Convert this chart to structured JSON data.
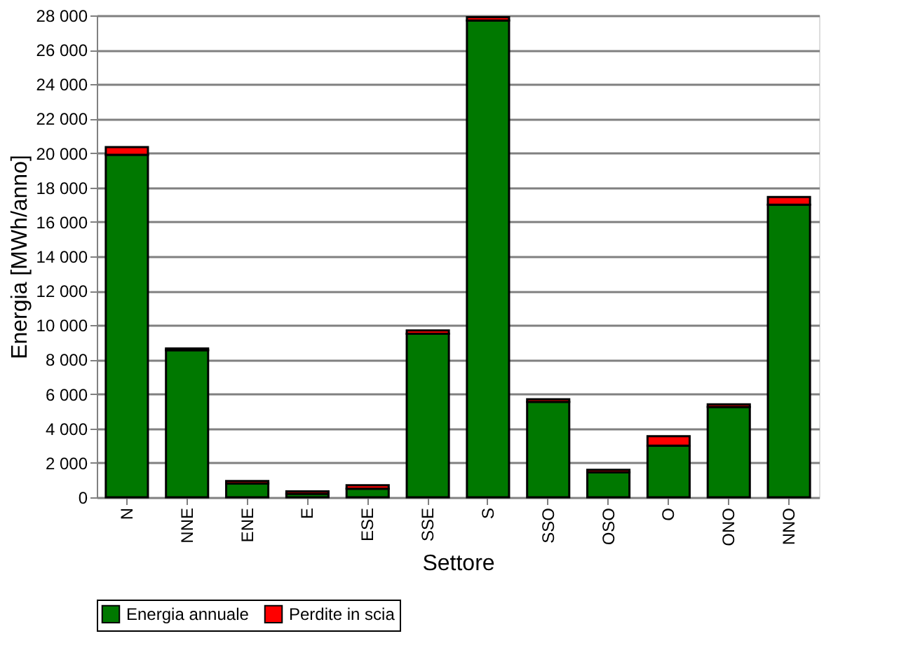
{
  "chart_data": {
    "type": "bar",
    "stacked": true,
    "xlabel": "Settore",
    "ylabel": "Energia [MWh/anno]",
    "categories": [
      "N",
      "NNE",
      "ENE",
      "E",
      "ESE",
      "SSE",
      "S",
      "SSO",
      "OSO",
      "O",
      "ONO",
      "NNO"
    ],
    "series": [
      {
        "name": "Energia annuale",
        "color": "#007800",
        "values": [
          19900,
          8550,
          800,
          200,
          500,
          9500,
          27700,
          5550,
          1450,
          3000,
          5250,
          17000
        ]
      },
      {
        "name": "Perdite in scia",
        "color": "#ff0000",
        "values": [
          450,
          100,
          150,
          150,
          200,
          200,
          200,
          150,
          150,
          550,
          150,
          450
        ]
      }
    ],
    "ylim": [
      0,
      28000
    ],
    "yticks": [
      {
        "value": 0,
        "label": "0"
      },
      {
        "value": 2000,
        "label": "2 000"
      },
      {
        "value": 4000,
        "label": "4 000"
      },
      {
        "value": 6000,
        "label": "6 000"
      },
      {
        "value": 8000,
        "label": "8 000"
      },
      {
        "value": 10000,
        "label": "10 000"
      },
      {
        "value": 12000,
        "label": "12 000"
      },
      {
        "value": 14000,
        "label": "14 000"
      },
      {
        "value": 16000,
        "label": "16 000"
      },
      {
        "value": 18000,
        "label": "18 000"
      },
      {
        "value": 20000,
        "label": "20 000"
      },
      {
        "value": 22000,
        "label": "22 000"
      },
      {
        "value": 24000,
        "label": "24 000"
      },
      {
        "value": 26000,
        "label": "26 000"
      },
      {
        "value": 28000,
        "label": "28 000"
      }
    ],
    "grid": "y",
    "legend": "bottom"
  }
}
